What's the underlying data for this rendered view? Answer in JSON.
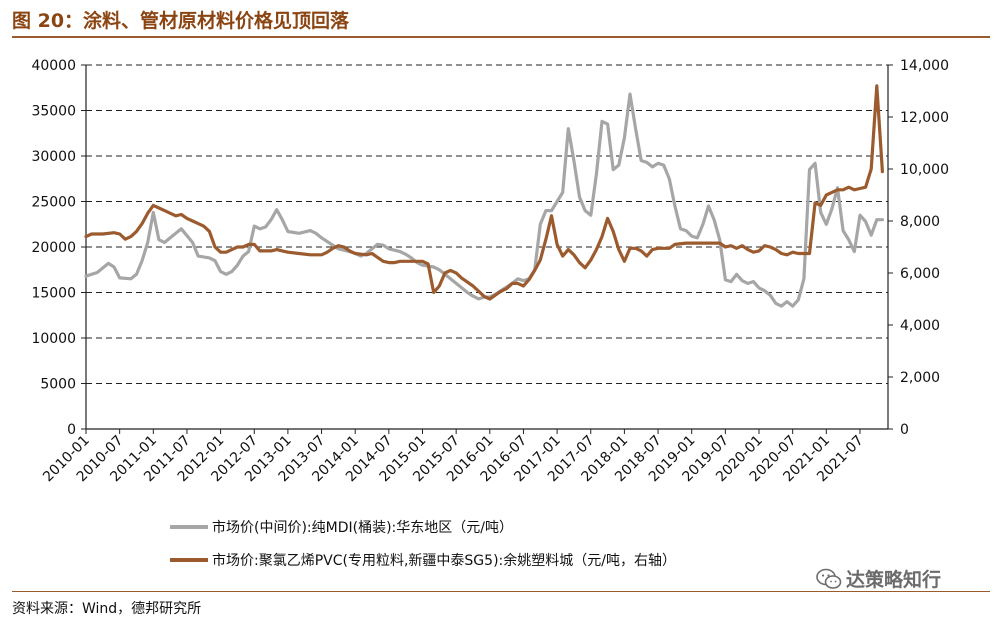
{
  "header": {
    "title": "图 20：涂料、管材原材料价格见顶回落"
  },
  "footer": {
    "source": "资料来源：Wind，德邦研究所"
  },
  "watermark": {
    "text": "达策略知行",
    "icon": "wechat-icon"
  },
  "colors": {
    "mdi": "#a6a6a6",
    "pvc": "#9c5b2e",
    "accent": "#9a5b2e"
  },
  "chart_data": {
    "type": "line",
    "title": "",
    "xlabel": "",
    "ylabel": "",
    "grid": "horizontal-dashed",
    "legend_position": "bottom",
    "x_start": "2010-01",
    "x_end": "2021-12",
    "x_tick_labels": [
      "2010-01",
      "2010-07",
      "2011-01",
      "2011-07",
      "2012-01",
      "2012-07",
      "2013-01",
      "2013-07",
      "2014-01",
      "2014-07",
      "2015-01",
      "2015-07",
      "2016-01",
      "2016-07",
      "2017-01",
      "2017-07",
      "2018-01",
      "2018-07",
      "2019-01",
      "2019-07",
      "2020-01",
      "2020-07",
      "2021-01",
      "2021-07"
    ],
    "y_left": {
      "min": 0,
      "max": 40000,
      "ticks": [
        "0",
        "5000",
        "10000",
        "15000",
        "20000",
        "25000",
        "30000",
        "35000",
        "40000"
      ]
    },
    "y_right": {
      "min": 0,
      "max": 14000,
      "ticks": [
        "0",
        "2,000",
        "4,000",
        "6,000",
        "8,000",
        "10,000",
        "12,000",
        "14,000"
      ]
    },
    "series": [
      {
        "name": "市场价(中间价):纯MDI(桶装):华东地区（元/吨）",
        "axis": "left",
        "points": [
          [
            "2010-01",
            16800
          ],
          [
            "2010-03",
            17200
          ],
          [
            "2010-05",
            18200
          ],
          [
            "2010-06",
            17800
          ],
          [
            "2010-07",
            16600
          ],
          [
            "2010-09",
            16500
          ],
          [
            "2010-10",
            17000
          ],
          [
            "2010-11",
            18500
          ],
          [
            "2010-12",
            20500
          ],
          [
            "2011-01",
            23800
          ],
          [
            "2011-02",
            20800
          ],
          [
            "2011-03",
            20500
          ],
          [
            "2011-04",
            21000
          ],
          [
            "2011-05",
            21500
          ],
          [
            "2011-06",
            22000
          ],
          [
            "2011-08",
            20500
          ],
          [
            "2011-09",
            19000
          ],
          [
            "2011-11",
            18800
          ],
          [
            "2011-12",
            18500
          ],
          [
            "2012-01",
            17300
          ],
          [
            "2012-02",
            17000
          ],
          [
            "2012-03",
            17300
          ],
          [
            "2012-04",
            18000
          ],
          [
            "2012-05",
            19000
          ],
          [
            "2012-06",
            19500
          ],
          [
            "2012-07",
            22300
          ],
          [
            "2012-08",
            22000
          ],
          [
            "2012-09",
            22200
          ],
          [
            "2012-10",
            23000
          ],
          [
            "2012-11",
            24100
          ],
          [
            "2012-12",
            23000
          ],
          [
            "2013-01",
            21700
          ],
          [
            "2013-03",
            21500
          ],
          [
            "2013-05",
            21800
          ],
          [
            "2013-06",
            21500
          ],
          [
            "2013-07",
            21000
          ],
          [
            "2013-09",
            20200
          ],
          [
            "2013-10",
            19800
          ],
          [
            "2013-12",
            19500
          ],
          [
            "2014-01",
            19300
          ],
          [
            "2014-02",
            19000
          ],
          [
            "2014-03",
            19300
          ],
          [
            "2014-04",
            19800
          ],
          [
            "2014-05",
            20300
          ],
          [
            "2014-06",
            20200
          ],
          [
            "2014-07",
            19800
          ],
          [
            "2014-09",
            19500
          ],
          [
            "2014-10",
            19200
          ],
          [
            "2014-11",
            18800
          ],
          [
            "2014-12",
            18300
          ],
          [
            "2015-01",
            18000
          ],
          [
            "2015-03",
            17800
          ],
          [
            "2015-04",
            17500
          ],
          [
            "2015-05",
            17000
          ],
          [
            "2015-06",
            16500
          ],
          [
            "2015-07",
            16000
          ],
          [
            "2015-08",
            15500
          ],
          [
            "2015-09",
            15000
          ],
          [
            "2015-10",
            14600
          ],
          [
            "2015-11",
            14300
          ],
          [
            "2015-12",
            14500
          ],
          [
            "2016-01",
            14500
          ],
          [
            "2016-02",
            14800
          ],
          [
            "2016-03",
            15200
          ],
          [
            "2016-04",
            15600
          ],
          [
            "2016-05",
            16000
          ],
          [
            "2016-06",
            16500
          ],
          [
            "2016-07",
            16300
          ],
          [
            "2016-08",
            16500
          ],
          [
            "2016-09",
            17500
          ],
          [
            "2016-10",
            22500
          ],
          [
            "2016-11",
            24000
          ],
          [
            "2016-12",
            24000
          ],
          [
            "2017-01",
            25000
          ],
          [
            "2017-02",
            26000
          ],
          [
            "2017-03",
            33000
          ],
          [
            "2017-04",
            29500
          ],
          [
            "2017-05",
            25500
          ],
          [
            "2017-06",
            24000
          ],
          [
            "2017-07",
            23500
          ],
          [
            "2017-08",
            28000
          ],
          [
            "2017-09",
            33800
          ],
          [
            "2017-10",
            33500
          ],
          [
            "2017-11",
            28500
          ],
          [
            "2017-12",
            29000
          ],
          [
            "2018-01",
            32000
          ],
          [
            "2018-02",
            36800
          ],
          [
            "2018-03",
            33000
          ],
          [
            "2018-04",
            29500
          ],
          [
            "2018-05",
            29300
          ],
          [
            "2018-06",
            28800
          ],
          [
            "2018-07",
            29200
          ],
          [
            "2018-08",
            29000
          ],
          [
            "2018-09",
            27500
          ],
          [
            "2018-10",
            24500
          ],
          [
            "2018-11",
            22000
          ],
          [
            "2018-12",
            21800
          ],
          [
            "2019-01",
            21200
          ],
          [
            "2019-02",
            21000
          ],
          [
            "2019-03",
            22500
          ],
          [
            "2019-04",
            24500
          ],
          [
            "2019-05",
            23000
          ],
          [
            "2019-06",
            20800
          ],
          [
            "2019-07",
            16400
          ],
          [
            "2019-08",
            16200
          ],
          [
            "2019-09",
            17000
          ],
          [
            "2019-10",
            16300
          ],
          [
            "2019-11",
            16000
          ],
          [
            "2019-12",
            16200
          ],
          [
            "2020-01",
            15500
          ],
          [
            "2020-02",
            15200
          ],
          [
            "2020-03",
            14700
          ],
          [
            "2020-04",
            13800
          ],
          [
            "2020-05",
            13500
          ],
          [
            "2020-06",
            14000
          ],
          [
            "2020-07",
            13500
          ],
          [
            "2020-08",
            14200
          ],
          [
            "2020-09",
            16500
          ],
          [
            "2020-10",
            28500
          ],
          [
            "2020-11",
            29200
          ],
          [
            "2020-12",
            23800
          ],
          [
            "2021-01",
            22500
          ],
          [
            "2021-02",
            24200
          ],
          [
            "2021-03",
            26500
          ],
          [
            "2021-04",
            21800
          ],
          [
            "2021-05",
            20800
          ],
          [
            "2021-06",
            19500
          ],
          [
            "2021-07",
            23500
          ],
          [
            "2021-08",
            22800
          ],
          [
            "2021-09",
            21300
          ],
          [
            "2021-10",
            23000
          ],
          [
            "2021-11",
            23000
          ]
        ]
      },
      {
        "name": "市场价:聚氯乙烯PVC(专用粒料,新疆中泰SG5):余姚塑料城（元/吨，右轴）",
        "axis": "right",
        "points": [
          [
            "2010-01",
            7400
          ],
          [
            "2010-02",
            7500
          ],
          [
            "2010-04",
            7500
          ],
          [
            "2010-06",
            7550
          ],
          [
            "2010-07",
            7500
          ],
          [
            "2010-08",
            7300
          ],
          [
            "2010-09",
            7400
          ],
          [
            "2010-10",
            7600
          ],
          [
            "2010-11",
            7900
          ],
          [
            "2010-12",
            8300
          ],
          [
            "2011-01",
            8600
          ],
          [
            "2011-02",
            8500
          ],
          [
            "2011-03",
            8400
          ],
          [
            "2011-04",
            8300
          ],
          [
            "2011-05",
            8200
          ],
          [
            "2011-06",
            8250
          ],
          [
            "2011-07",
            8100
          ],
          [
            "2011-08",
            8000
          ],
          [
            "2011-09",
            7900
          ],
          [
            "2011-10",
            7800
          ],
          [
            "2011-11",
            7600
          ],
          [
            "2011-12",
            7000
          ],
          [
            "2012-01",
            6800
          ],
          [
            "2012-02",
            6800
          ],
          [
            "2012-03",
            6900
          ],
          [
            "2012-04",
            7000
          ],
          [
            "2012-05",
            7000
          ],
          [
            "2012-06",
            7100
          ],
          [
            "2012-07",
            7100
          ],
          [
            "2012-08",
            6850
          ],
          [
            "2012-09",
            6850
          ],
          [
            "2012-10",
            6850
          ],
          [
            "2012-11",
            6900
          ],
          [
            "2012-12",
            6850
          ],
          [
            "2013-01",
            6800
          ],
          [
            "2013-03",
            6750
          ],
          [
            "2013-05",
            6700
          ],
          [
            "2013-07",
            6700
          ],
          [
            "2013-08",
            6800
          ],
          [
            "2013-09",
            6950
          ],
          [
            "2013-10",
            7050
          ],
          [
            "2013-11",
            7000
          ],
          [
            "2013-12",
            6850
          ],
          [
            "2014-01",
            6750
          ],
          [
            "2014-03",
            6700
          ],
          [
            "2014-04",
            6750
          ],
          [
            "2014-05",
            6600
          ],
          [
            "2014-06",
            6450
          ],
          [
            "2014-07",
            6400
          ],
          [
            "2014-08",
            6400
          ],
          [
            "2014-09",
            6450
          ],
          [
            "2014-10",
            6450
          ],
          [
            "2014-12",
            6450
          ],
          [
            "2015-01",
            6450
          ],
          [
            "2015-02",
            6350
          ],
          [
            "2015-03",
            5250
          ],
          [
            "2015-04",
            5500
          ],
          [
            "2015-05",
            6000
          ],
          [
            "2015-06",
            6100
          ],
          [
            "2015-07",
            6000
          ],
          [
            "2015-08",
            5800
          ],
          [
            "2015-09",
            5650
          ],
          [
            "2015-10",
            5500
          ],
          [
            "2015-11",
            5300
          ],
          [
            "2015-12",
            5100
          ],
          [
            "2016-01",
            5000
          ],
          [
            "2016-02",
            5150
          ],
          [
            "2016-03",
            5300
          ],
          [
            "2016-04",
            5400
          ],
          [
            "2016-05",
            5600
          ],
          [
            "2016-06",
            5600
          ],
          [
            "2016-07",
            5500
          ],
          [
            "2016-08",
            5750
          ],
          [
            "2016-09",
            6100
          ],
          [
            "2016-10",
            6500
          ],
          [
            "2016-11",
            7300
          ],
          [
            "2016-12",
            8200
          ],
          [
            "2017-01",
            7100
          ],
          [
            "2017-02",
            6650
          ],
          [
            "2017-03",
            6900
          ],
          [
            "2017-04",
            6700
          ],
          [
            "2017-05",
            6400
          ],
          [
            "2017-06",
            6200
          ],
          [
            "2017-07",
            6500
          ],
          [
            "2017-08",
            6900
          ],
          [
            "2017-09",
            7400
          ],
          [
            "2017-10",
            8100
          ],
          [
            "2017-11",
            7600
          ],
          [
            "2017-12",
            6900
          ],
          [
            "2018-01",
            6450
          ],
          [
            "2018-02",
            6950
          ],
          [
            "2018-03",
            6950
          ],
          [
            "2018-04",
            6850
          ],
          [
            "2018-05",
            6650
          ],
          [
            "2018-06",
            6900
          ],
          [
            "2018-07",
            6950
          ],
          [
            "2018-08",
            6950
          ],
          [
            "2018-09",
            6950
          ],
          [
            "2018-10",
            7100
          ],
          [
            "2018-12",
            7150
          ],
          [
            "2019-02",
            7150
          ],
          [
            "2019-04",
            7150
          ],
          [
            "2019-06",
            7150
          ],
          [
            "2019-07",
            7000
          ],
          [
            "2019-08",
            7050
          ],
          [
            "2019-09",
            6950
          ],
          [
            "2019-10",
            7050
          ],
          [
            "2019-11",
            6900
          ],
          [
            "2019-12",
            6800
          ],
          [
            "2020-01",
            6850
          ],
          [
            "2020-02",
            7050
          ],
          [
            "2020-03",
            7000
          ],
          [
            "2020-04",
            6900
          ],
          [
            "2020-05",
            6750
          ],
          [
            "2020-06",
            6700
          ],
          [
            "2020-07",
            6800
          ],
          [
            "2020-08",
            6750
          ],
          [
            "2020-10",
            6750
          ],
          [
            "2020-11",
            8700
          ],
          [
            "2020-12",
            8600
          ],
          [
            "2021-01",
            9000
          ],
          [
            "2021-02",
            9100
          ],
          [
            "2021-03",
            9200
          ],
          [
            "2021-04",
            9200
          ],
          [
            "2021-05",
            9300
          ],
          [
            "2021-06",
            9200
          ],
          [
            "2021-07",
            9250
          ],
          [
            "2021-08",
            9300
          ],
          [
            "2021-09",
            10000
          ],
          [
            "2021-10",
            13200
          ],
          [
            "2021-11",
            9900
          ]
        ]
      }
    ]
  }
}
